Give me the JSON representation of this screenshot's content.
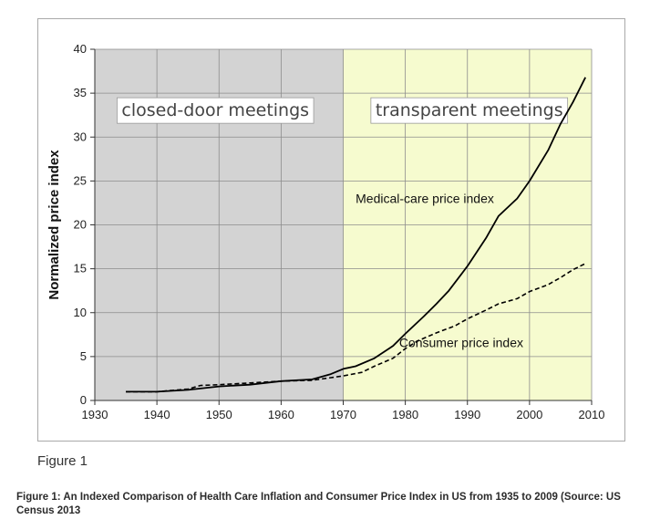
{
  "chart_data": {
    "type": "line",
    "xlabel": "",
    "ylabel": "Normalized price index",
    "xlim": [
      1930,
      2010
    ],
    "ylim": [
      0,
      40
    ],
    "x_ticks": [
      "1930",
      "1940",
      "1950",
      "1960",
      "1970",
      "1980",
      "1990",
      "2000",
      "2010"
    ],
    "y_ticks": [
      "0",
      "5",
      "10",
      "15",
      "20",
      "25",
      "30",
      "35",
      "40"
    ],
    "grid": true,
    "regions": [
      {
        "label": "closed-door meetings",
        "x_start": 1930,
        "x_end": 1970,
        "color": "#d3d3d3"
      },
      {
        "label": "transparent meetings",
        "x_start": 1970,
        "x_end": 2010,
        "color": "#f6fbcf"
      }
    ],
    "series": [
      {
        "name": "Medical-care price index",
        "style": "solid",
        "color": "#000000",
        "x": [
          1935,
          1940,
          1945,
          1950,
          1955,
          1960,
          1965,
          1968,
          1970,
          1972,
          1975,
          1978,
          1980,
          1983,
          1985,
          1987,
          1990,
          1993,
          1995,
          1998,
          2000,
          2003,
          2005,
          2007,
          2009
        ],
        "y": [
          1.0,
          1.0,
          1.2,
          1.6,
          1.8,
          2.2,
          2.4,
          3.0,
          3.6,
          3.9,
          4.8,
          6.2,
          7.6,
          9.6,
          11.0,
          12.5,
          15.3,
          18.5,
          21.0,
          23.0,
          25.0,
          28.5,
          31.5,
          34.0,
          36.8
        ]
      },
      {
        "name": "Consumer price index",
        "style": "dashed",
        "color": "#000000",
        "x": [
          1935,
          1940,
          1945,
          1947,
          1950,
          1955,
          1960,
          1965,
          1968,
          1970,
          1973,
          1975,
          1978,
          1980,
          1982,
          1985,
          1988,
          1990,
          1993,
          1995,
          1998,
          2000,
          2003,
          2005,
          2007,
          2009
        ],
        "y": [
          1.0,
          1.0,
          1.3,
          1.7,
          1.8,
          2.0,
          2.2,
          2.3,
          2.6,
          2.8,
          3.2,
          3.9,
          4.8,
          5.9,
          6.8,
          7.7,
          8.5,
          9.3,
          10.3,
          11.0,
          11.6,
          12.4,
          13.2,
          14.0,
          14.9,
          15.6
        ]
      }
    ],
    "annotations": [
      {
        "text": "Medical-care price index",
        "x": 1972,
        "y": 22.5
      },
      {
        "text": "Consumer price index",
        "x": 1979,
        "y": 6.1
      }
    ]
  },
  "figure_number": "Figure 1",
  "caption": "Figure 1: An Indexed Comparison of Health Care Inflation and Consumer Price Index in US from 1935 to 2009 (Source: US Census 2013"
}
